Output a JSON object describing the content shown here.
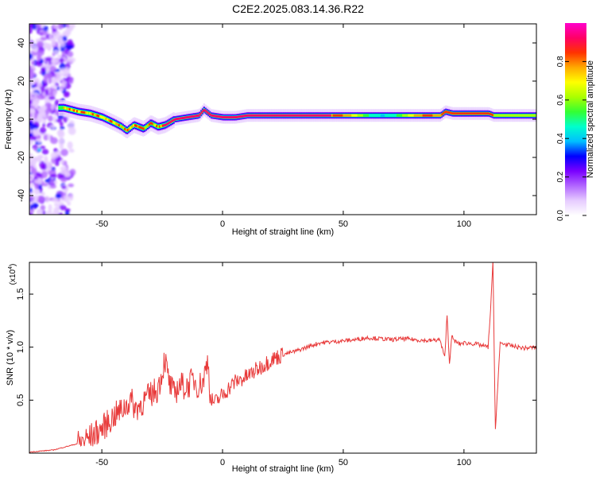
{
  "title": "C2E2.2025.083.14.36.R22",
  "colors": {
    "snr_line": "#e83a3a",
    "track_core": "#e3263b"
  },
  "chart_data": [
    {
      "type": "heatmap",
      "xlabel": "Height of straight line (km)",
      "ylabel": "Frequency (Hz)",
      "xlim": [
        -80,
        130
      ],
      "ylim": [
        -50,
        50
      ],
      "xticks": [
        -50,
        0,
        50,
        100
      ],
      "yticks": [
        -40,
        -20,
        0,
        20,
        40
      ],
      "colorbar": {
        "label": "Normalized spectral amplitude",
        "range": [
          0,
          1
        ],
        "ticks": [
          "0.0",
          "0.2",
          "0.4",
          "0.6",
          "0.8"
        ],
        "colormap": [
          "#ffffff",
          "#e6ccff",
          "#b266ff",
          "#7a00ff",
          "#0000ff",
          "#00bfff",
          "#00ffcc",
          "#33ff33",
          "#aaff00",
          "#ffff00",
          "#ffaa00",
          "#ff3300",
          "#ff0066",
          "#ff00cc"
        ]
      },
      "ridge": {
        "x": [
          -66,
          -60,
          -55,
          -50,
          -45,
          -42,
          -40,
          -37,
          -33,
          -30,
          -27,
          -24,
          -20,
          -15,
          -10,
          -8,
          -5,
          0,
          5,
          10,
          20,
          30,
          40,
          50,
          60,
          70,
          80,
          90,
          92,
          95,
          100,
          105,
          110,
          112,
          115,
          120,
          125,
          130
        ],
        "y": [
          6,
          4,
          3,
          1,
          -2,
          -4,
          -6,
          -3,
          -5,
          -2,
          -4,
          -3,
          0,
          1,
          2,
          5,
          2,
          1,
          1,
          2,
          2,
          2,
          2,
          2,
          2,
          2,
          2,
          2,
          4,
          3,
          3,
          3,
          3,
          2,
          2,
          2,
          2,
          2
        ]
      }
    },
    {
      "type": "line",
      "xlabel": "Height of straight line (km)",
      "ylabel": "SNR (10 * v/v)",
      "y_multiplier": "(x10",
      "y_multiplier_exp": "4",
      "y_multiplier_close": ")",
      "xlim": [
        -80,
        130
      ],
      "ylim": [
        0,
        18000
      ],
      "xticks": [
        -50,
        0,
        50,
        100
      ],
      "yticks": [
        0.5,
        1.0,
        1.5
      ],
      "ytick_labels": [
        "0.5",
        "1.0",
        "1.5"
      ],
      "series": [
        {
          "x": [
            -80,
            -70,
            -65,
            -60,
            -55,
            -50,
            -47,
            -45,
            -42,
            -40,
            -38,
            -36,
            -33,
            -30,
            -27,
            -25,
            -24,
            -22,
            -20,
            -18,
            -15,
            -12,
            -10,
            -8,
            -6,
            -5,
            -3,
            0,
            5,
            10,
            15,
            20,
            25,
            30,
            35,
            40,
            45,
            50,
            55,
            60,
            65,
            70,
            75,
            80,
            85,
            90,
            92,
            93,
            94,
            95,
            96,
            98,
            100,
            105,
            110,
            111,
            112,
            113,
            115,
            120,
            125,
            130
          ],
          "y": [
            100,
            300,
            600,
            900,
            1500,
            2300,
            3000,
            3500,
            4000,
            4500,
            5000,
            4200,
            4800,
            5500,
            6000,
            7500,
            9000,
            6500,
            5500,
            6500,
            6200,
            7000,
            6300,
            6800,
            9000,
            5000,
            4800,
            5500,
            6700,
            7200,
            8000,
            8800,
            9300,
            9600,
            10000,
            10400,
            10500,
            10600,
            10700,
            10900,
            10800,
            10700,
            10800,
            10700,
            10600,
            10700,
            9000,
            13000,
            8500,
            11000,
            10600,
            10300,
            10400,
            10300,
            10000,
            13500,
            18000,
            2200,
            10400,
            10100,
            9900,
            10000
          ]
        }
      ]
    }
  ]
}
